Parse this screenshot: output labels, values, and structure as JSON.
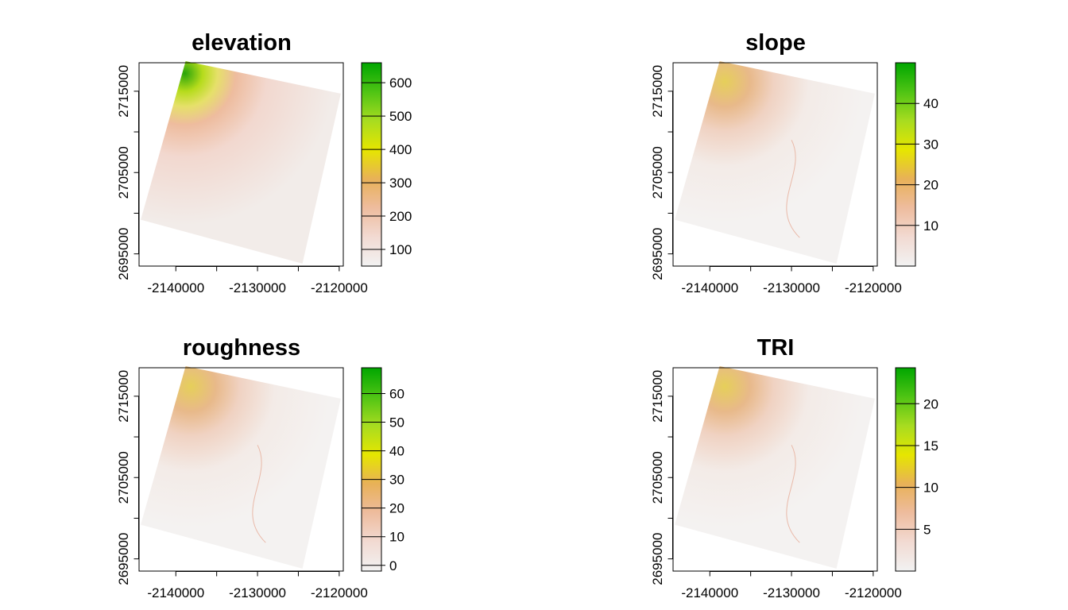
{
  "chart_data": [
    {
      "type": "heatmap",
      "title": "elevation",
      "xlabel": "",
      "ylabel": "",
      "x_ticks": [
        -2140000,
        -2130000,
        -2120000
      ],
      "x_tick_labels": [
        "-2140000",
        "-2130000",
        "-2120000"
      ],
      "y_ticks": [
        2695000,
        2705000,
        2715000
      ],
      "y_tick_labels": [
        "2695000",
        "2705000",
        "2715000"
      ],
      "xlim": [
        -2144500,
        -2119500
      ],
      "ylim": [
        2693500,
        2718500
      ],
      "legend_ticks": [
        100,
        200,
        300,
        400,
        500,
        600
      ],
      "legend_tick_labels": [
        "100",
        "200",
        "300",
        "400",
        "500",
        "600"
      ],
      "legend_range": [
        50,
        660
      ],
      "legend_placement": "right",
      "grid": false
    },
    {
      "type": "heatmap",
      "title": "slope",
      "xlabel": "",
      "ylabel": "",
      "x_ticks": [
        -2140000,
        -2130000,
        -2120000
      ],
      "x_tick_labels": [
        "-2140000",
        "-2130000",
        "-2120000"
      ],
      "y_ticks": [
        2695000,
        2705000,
        2715000
      ],
      "y_tick_labels": [
        "2695000",
        "2705000",
        "2715000"
      ],
      "xlim": [
        -2144500,
        -2119500
      ],
      "ylim": [
        2693500,
        2718500
      ],
      "legend_ticks": [
        10,
        20,
        30,
        40
      ],
      "legend_tick_labels": [
        "10",
        "20",
        "30",
        "40"
      ],
      "legend_range": [
        0,
        50
      ],
      "legend_placement": "right",
      "grid": false
    },
    {
      "type": "heatmap",
      "title": "roughness",
      "xlabel": "",
      "ylabel": "",
      "x_ticks": [
        -2140000,
        -2130000,
        -2120000
      ],
      "x_tick_labels": [
        "-2140000",
        "-2130000",
        "-2120000"
      ],
      "y_ticks": [
        2695000,
        2705000,
        2715000
      ],
      "y_tick_labels": [
        "2695000",
        "2705000",
        "2715000"
      ],
      "xlim": [
        -2144500,
        -2119500
      ],
      "ylim": [
        2693500,
        2718500
      ],
      "legend_ticks": [
        0,
        10,
        20,
        30,
        40,
        50,
        60
      ],
      "legend_tick_labels": [
        "0",
        "10",
        "20",
        "30",
        "40",
        "50",
        "60"
      ],
      "legend_range": [
        -2,
        69
      ],
      "legend_placement": "right",
      "grid": false
    },
    {
      "type": "heatmap",
      "title": "TRI",
      "xlabel": "",
      "ylabel": "",
      "x_ticks": [
        -2140000,
        -2130000,
        -2120000
      ],
      "x_tick_labels": [
        "-2140000",
        "-2130000",
        "-2120000"
      ],
      "y_ticks": [
        2695000,
        2705000,
        2715000
      ],
      "y_tick_labels": [
        "2695000",
        "2705000",
        "2715000"
      ],
      "xlim": [
        -2144500,
        -2119500
      ],
      "ylim": [
        2693500,
        2718500
      ],
      "legend_ticks": [
        5,
        10,
        15,
        20
      ],
      "legend_tick_labels": [
        "5",
        "10",
        "15",
        "20"
      ],
      "legend_range": [
        0,
        24.3
      ],
      "legend_placement": "right",
      "grid": false
    }
  ],
  "colors": {
    "palette": [
      "#f2f2f2",
      "#f2dad2",
      "#eebc9e",
      "#e8b158",
      "#e6e600",
      "#a8dc20",
      "#4fc414",
      "#00a600"
    ]
  }
}
